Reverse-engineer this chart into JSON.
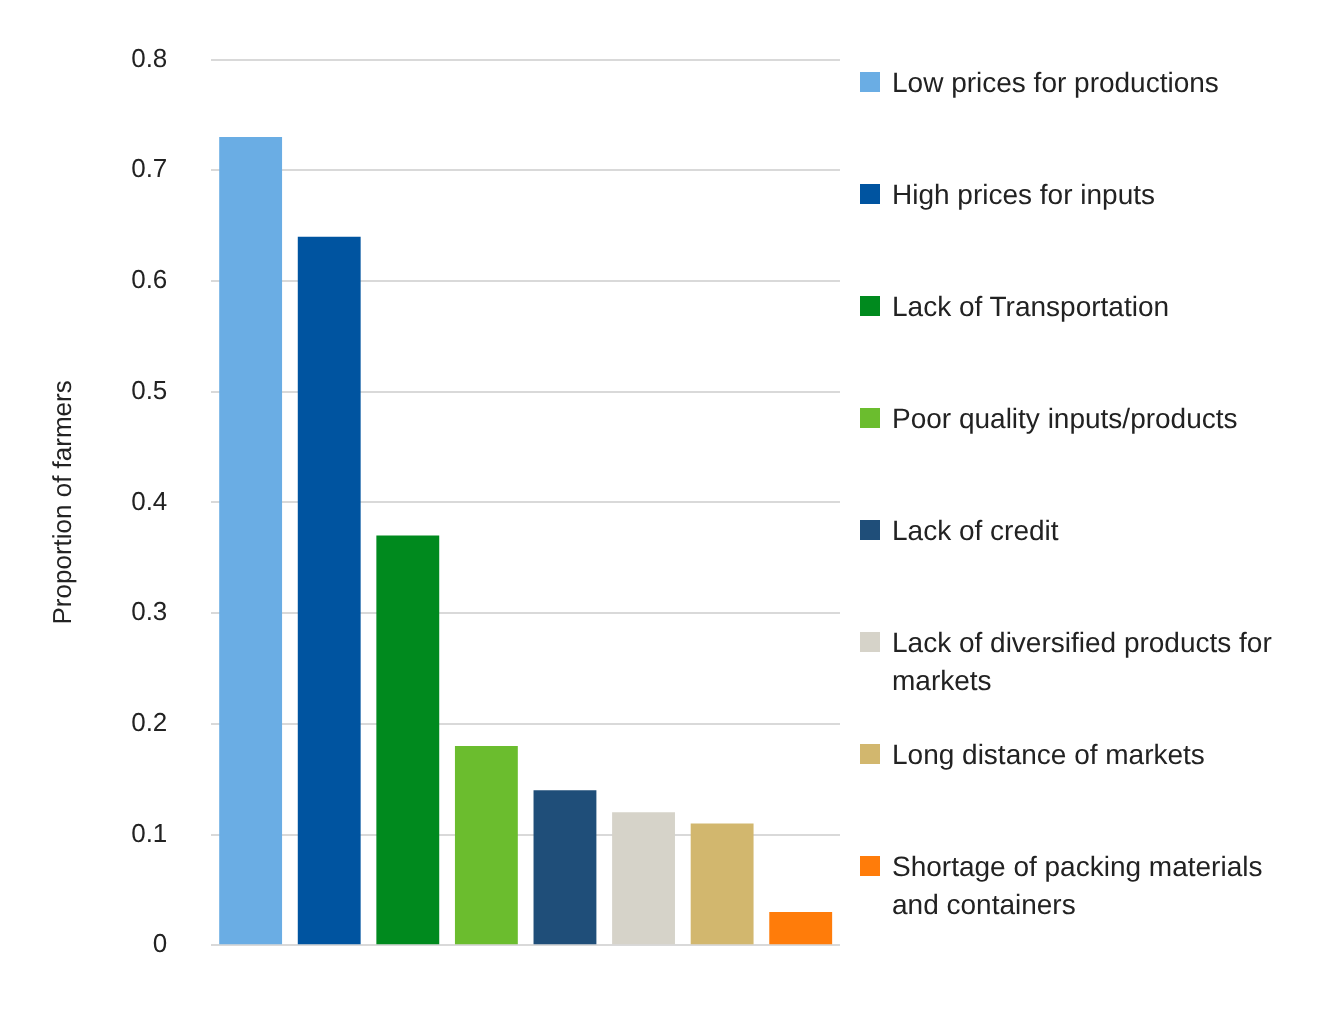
{
  "chart_data": {
    "type": "bar",
    "ylabel": "Proportion of farmers",
    "categories": [
      null,
      null,
      null,
      null,
      null,
      null,
      null,
      null
    ],
    "series": [
      {
        "name": "Low prices for productions",
        "color": "#6aade4",
        "values": [
          0.73,
          null,
          null,
          null,
          null,
          null,
          null,
          null
        ]
      },
      {
        "name": "High prices for inputs",
        "color": "#0054a0",
        "values": [
          null,
          0.64,
          null,
          null,
          null,
          null,
          null,
          null
        ]
      },
      {
        "name": "Lack of Transportation",
        "color": "#008a1e",
        "values": [
          null,
          null,
          0.37,
          null,
          null,
          null,
          null,
          null
        ]
      },
      {
        "name": "Poor quality inputs/products",
        "color": "#6bbd2e",
        "values": [
          null,
          null,
          null,
          0.18,
          null,
          null,
          null,
          null
        ]
      },
      {
        "name": "Lack of credit",
        "color": "#1f4e79",
        "values": [
          null,
          null,
          null,
          null,
          0.14,
          null,
          null,
          null
        ]
      },
      {
        "name": " Lack of diversified products for markets",
        "color": "#d6d3c9",
        "values": [
          null,
          null,
          null,
          null,
          null,
          0.12,
          null,
          null
        ]
      },
      {
        "name": "Long distance of markets",
        "color": "#d2b76e",
        "values": [
          null,
          null,
          null,
          null,
          null,
          null,
          0.11,
          null
        ]
      },
      {
        "name": "Shortage of packing materials and containers",
        "color": "#ff7c0a",
        "values": [
          null,
          null,
          null,
          null,
          null,
          null,
          null,
          0.03
        ]
      }
    ],
    "ylim": [
      0,
      0.8
    ],
    "yticks": [
      0,
      0.1,
      0.2,
      0.3,
      0.4,
      0.5,
      0.6,
      0.7,
      0.8
    ],
    "grid": "y",
    "legend": "right"
  }
}
